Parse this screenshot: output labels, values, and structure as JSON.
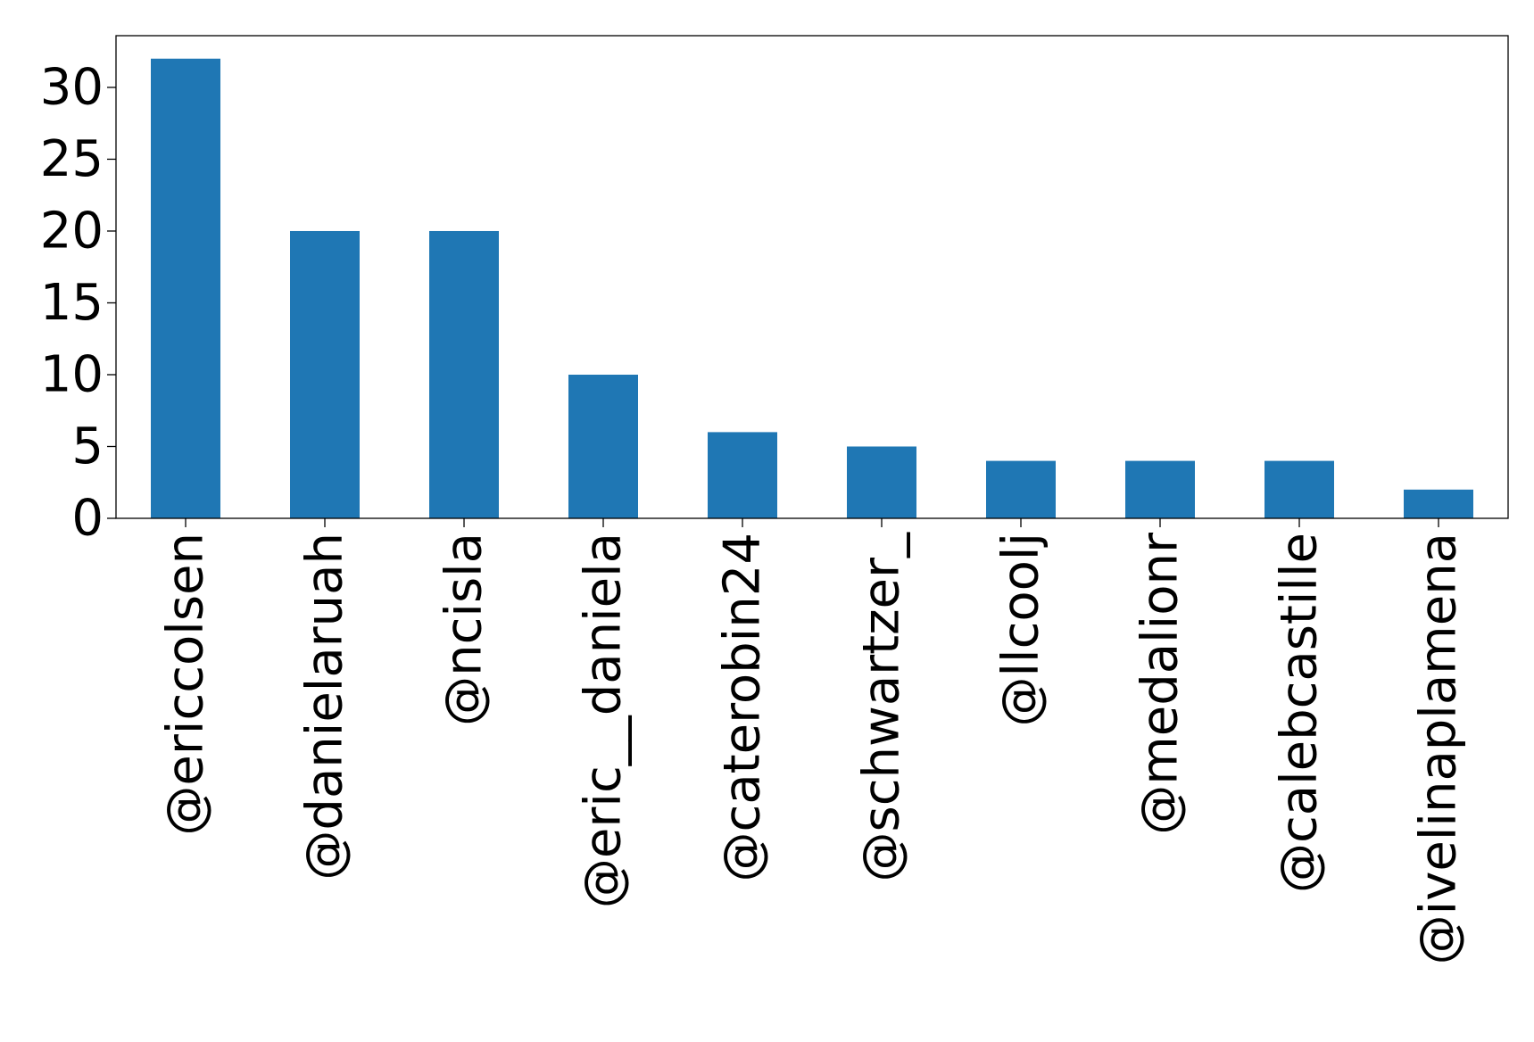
{
  "chart_data": {
    "type": "bar",
    "categories": [
      "@ericcolsen",
      "@danielaruah",
      "@ncisla",
      "@eric__daniela",
      "@caterobin24",
      "@schwartzer_",
      "@llcoolj",
      "@medalionr",
      "@calebcastille",
      "@ivelinaplamena"
    ],
    "values": [
      32,
      20,
      20,
      10,
      6,
      5,
      4,
      4,
      4,
      2
    ],
    "yticks": [
      "0",
      "5",
      "10",
      "15",
      "20",
      "25",
      "30"
    ],
    "ylim": [
      0,
      33.6
    ],
    "title": "",
    "xlabel": "",
    "ylabel": "",
    "grid": false,
    "legend": "none",
    "bar_color": "#1f77b4",
    "axis_color": "#000000"
  }
}
